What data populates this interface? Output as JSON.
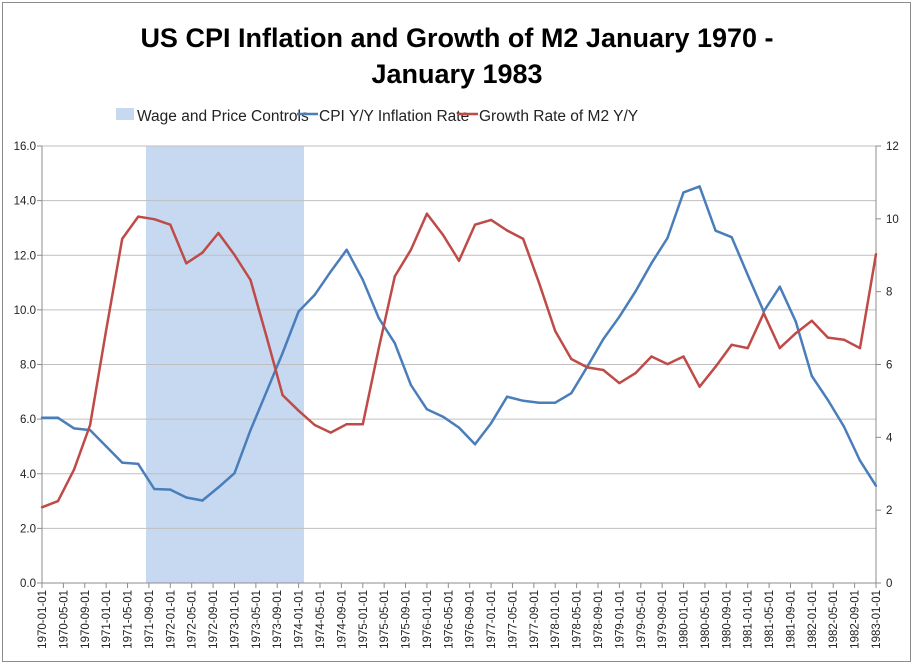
{
  "chart_data": {
    "type": "line",
    "title_lines": [
      "US CPI Inflation and Growth of M2 January 1970 -",
      "January 1983"
    ],
    "colors": {
      "cpi": "#4a7ebb",
      "m2": "#be4b48",
      "controls": "#c6d9f1",
      "grid": "#bfbfbf"
    },
    "legend": {
      "placement": "top",
      "entries": [
        "Wage and Price Controls",
        "CPI Y/Y Inflation Rate",
        "Growth Rate of M2 Y/Y"
      ]
    },
    "grid": "horizontal",
    "y_left": {
      "range": [
        0,
        16
      ],
      "ticks": [
        "0.0",
        "2.0",
        "4.0",
        "6.0",
        "8.0",
        "10.0",
        "12.0",
        "14.0",
        "16.0"
      ],
      "series": "CPI Y/Y Inflation Rate"
    },
    "y_right": {
      "range": [
        0,
        12
      ],
      "ticks": [
        "0",
        "2",
        "4",
        "6",
        "8",
        "10",
        "12"
      ],
      "series": "Growth Rate of M2 Y/Y"
    },
    "x_ticks": [
      "1970-01-01",
      "1970-05-01",
      "1970-09-01",
      "1971-01-01",
      "1971-05-01",
      "1971-09-01",
      "1972-01-01",
      "1972-05-01",
      "1972-09-01",
      "1973-01-01",
      "1973-05-01",
      "1973-09-01",
      "1974-01-01",
      "1974-05-01",
      "1974-09-01",
      "1975-01-01",
      "1975-05-01",
      "1975-09-01",
      "1976-01-01",
      "1976-05-01",
      "1976-09-01",
      "1977-01-01",
      "1977-05-01",
      "1977-09-01",
      "1978-01-01",
      "1978-05-01",
      "1978-09-01",
      "1979-01-01",
      "1979-05-01",
      "1979-09-01",
      "1980-01-01",
      "1980-05-01",
      "1980-09-01",
      "1981-01-01",
      "1981-05-01",
      "1981-09-01",
      "1982-01-01",
      "1982-05-01",
      "1982-09-01",
      "1983-01-01"
    ],
    "x_range": [
      "1970-01-01",
      "1983-01-01"
    ],
    "shaded_period": {
      "name": "Wage and Price Controls",
      "start": "1971-08-15",
      "end": "1974-02-01"
    },
    "x": [
      "1970-01",
      "1970-04",
      "1970-07",
      "1970-10",
      "1971-01",
      "1971-04",
      "1971-07",
      "1971-10",
      "1972-01",
      "1972-04",
      "1972-07",
      "1972-10",
      "1973-01",
      "1973-04",
      "1973-07",
      "1973-10",
      "1974-01",
      "1974-04",
      "1974-07",
      "1974-10",
      "1975-01",
      "1975-04",
      "1975-07",
      "1975-10",
      "1976-01",
      "1976-04",
      "1976-07",
      "1976-10",
      "1977-01",
      "1977-04",
      "1977-07",
      "1977-10",
      "1978-01",
      "1978-04",
      "1978-07",
      "1978-10",
      "1979-01",
      "1979-04",
      "1979-07",
      "1979-10",
      "1980-01",
      "1980-04",
      "1980-07",
      "1980-10",
      "1981-01",
      "1981-04",
      "1981-07",
      "1981-10",
      "1982-01",
      "1982-04",
      "1982-07",
      "1982-10",
      "1983-01"
    ],
    "series": [
      {
        "name": "CPI Y/Y Inflation Rate",
        "axis": "left",
        "values": [
          6.05,
          6.05,
          5.66,
          5.6,
          5.0,
          4.41,
          4.36,
          3.44,
          3.42,
          3.13,
          3.02,
          3.5,
          4.02,
          5.6,
          7.0,
          8.42,
          9.94,
          10.55,
          11.4,
          12.2,
          11.1,
          9.7,
          8.78,
          7.25,
          6.36,
          6.09,
          5.69,
          5.08,
          5.85,
          6.82,
          6.67,
          6.6,
          6.6,
          6.95,
          7.92,
          8.93,
          9.75,
          10.67,
          11.71,
          12.63,
          14.3,
          14.52,
          12.9,
          12.66,
          11.28,
          9.94,
          10.85,
          9.57,
          7.58,
          6.7,
          5.73,
          4.48,
          3.56
        ]
      },
      {
        "name": "Growth Rate of M2 Y/Y",
        "axis": "right",
        "values": [
          2.08,
          2.25,
          3.12,
          4.34,
          6.95,
          9.45,
          10.06,
          9.99,
          9.84,
          8.78,
          9.07,
          9.61,
          9.01,
          8.32,
          6.77,
          5.16,
          4.73,
          4.34,
          4.13,
          4.36,
          4.36,
          6.45,
          8.42,
          9.15,
          10.14,
          9.56,
          8.85,
          9.84,
          9.97,
          9.68,
          9.45,
          8.23,
          6.92,
          6.15,
          5.92,
          5.85,
          5.49,
          5.76,
          6.22,
          6.01,
          6.22,
          5.39,
          5.94,
          6.54,
          6.45,
          7.41,
          6.45,
          6.86,
          7.2,
          6.74,
          6.68,
          6.45,
          9.03
        ]
      }
    ]
  }
}
